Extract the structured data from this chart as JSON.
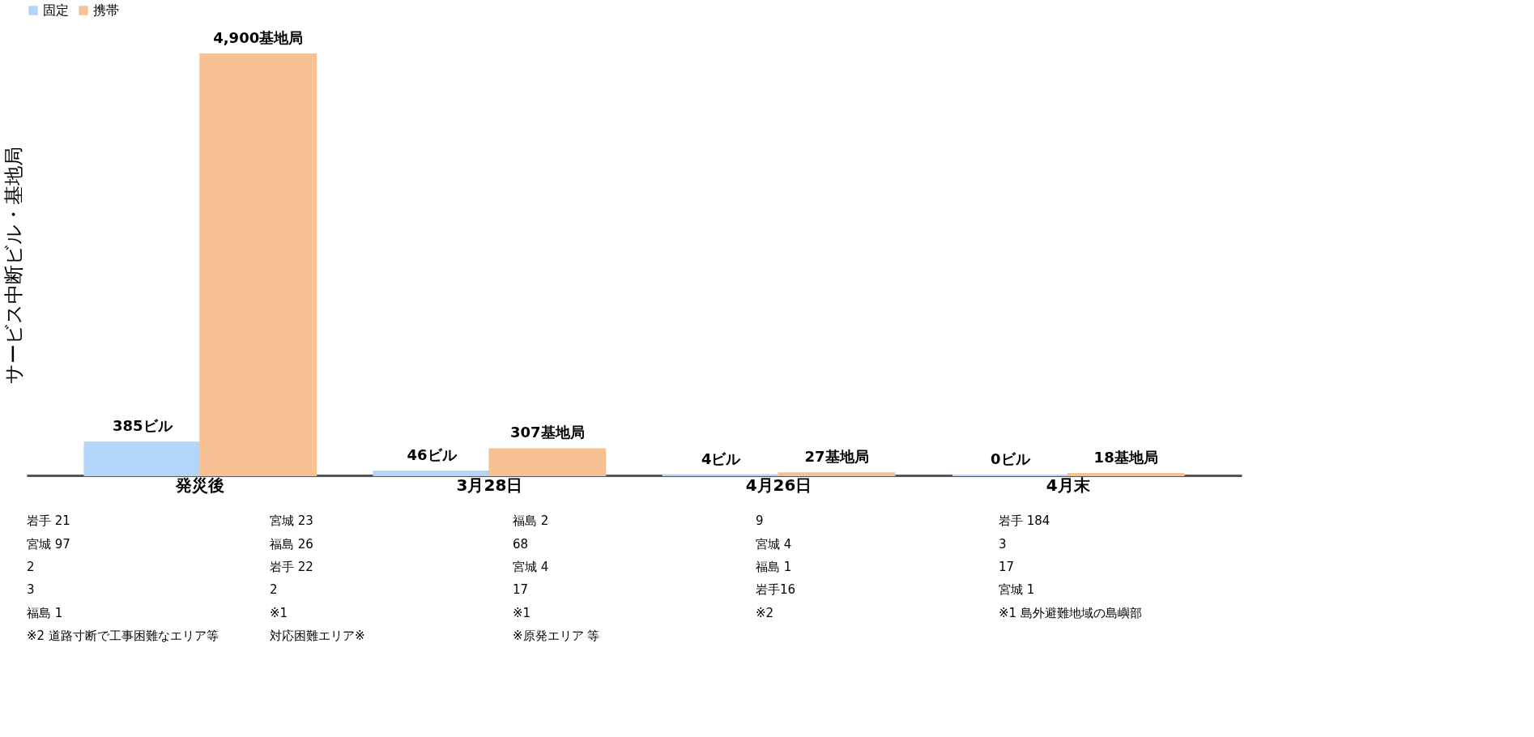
{
  "chart_data": {
    "type": "bar",
    "ylabel": "サービス中断ビル・基地局",
    "categories": [
      "発災後",
      "3月28日",
      "4月26日",
      "4月末"
    ],
    "series": [
      {
        "name": "固定",
        "color": "#b3d5fa",
        "values": [
          385,
          46,
          4,
          0
        ],
        "value_labels": [
          "385ビル",
          "46ビル",
          "4ビル",
          "0ビル"
        ]
      },
      {
        "name": "携帯",
        "color": "#f8c194",
        "values": [
          4900,
          307,
          27,
          18
        ],
        "value_labels": [
          "4,900基地局",
          "307基地局",
          "27基地局",
          "18基地局"
        ]
      }
    ],
    "legend": "top",
    "tick_labels": "x",
    "grid": false,
    "annotations": [
      "岩手 21",
      "宮城 23",
      "福島 2",
      "9",
      "岩手 184",
      "宮城 97",
      "福島 26",
      "68",
      "宮城 4",
      "3",
      "2",
      "岩手 22",
      "宮城 4",
      "福島 1",
      "17",
      "3",
      "2",
      "17",
      "岩手16",
      "宮城 1",
      "福島 1",
      "※1",
      "※1",
      "※2",
      "※1 島外避難地域の島嶼部",
      "※2 道路寸断で工事困難なエリア等",
      "対応困難エリア※",
      "※原発エリア 等"
    ]
  }
}
